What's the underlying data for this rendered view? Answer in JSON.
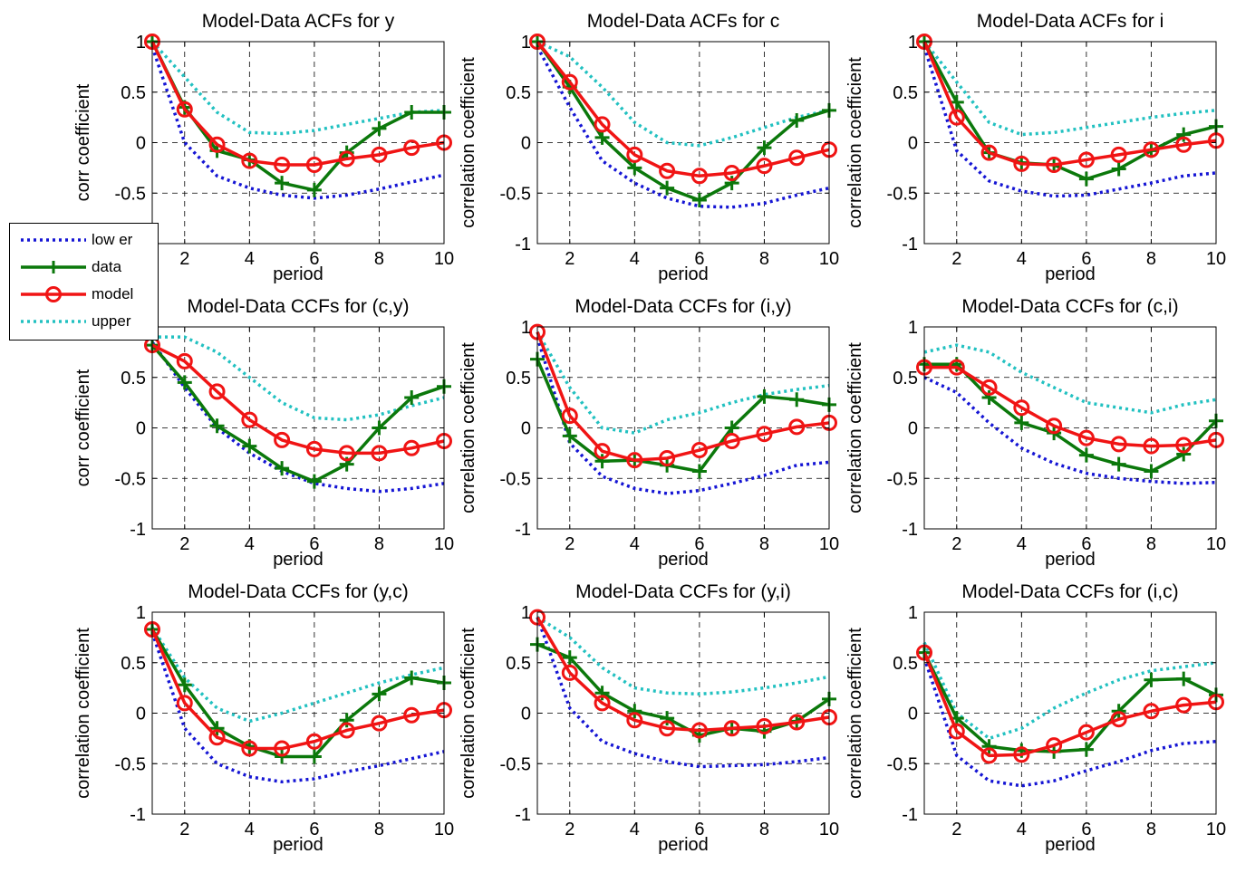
{
  "figure": {
    "xlabel": "period",
    "legend": [
      {
        "name": "low er",
        "key": "lower",
        "color": "#1515d4",
        "style": "dotted"
      },
      {
        "name": "data",
        "key": "data",
        "color": "#0b780b",
        "style": "plus"
      },
      {
        "name": "model",
        "key": "model",
        "color": "#f01414",
        "style": "circle"
      },
      {
        "name": "upper",
        "key": "upper",
        "color": "#22c1c1",
        "style": "dotted"
      }
    ]
  },
  "chart_data": [
    {
      "type": "line",
      "title": "Model-Data ACFs for y",
      "xlabel": "period",
      "ylabel": "corr coefficient",
      "x": [
        1,
        2,
        3,
        4,
        5,
        6,
        7,
        8,
        9,
        10
      ],
      "xlim": [
        1,
        10
      ],
      "ylim": [
        -1,
        1
      ],
      "grid": true,
      "xticks": [
        "2",
        "4",
        "6",
        "8",
        "10"
      ],
      "yticks": [
        "-1",
        "-0.5",
        "0",
        "0.5",
        "1"
      ],
      "series": [
        {
          "name": "low er",
          "values": [
            0.95,
            0.0,
            -0.33,
            -0.45,
            -0.52,
            -0.55,
            -0.52,
            -0.46,
            -0.39,
            -0.32
          ]
        },
        {
          "name": "data",
          "values": [
            1.0,
            0.35,
            -0.08,
            -0.17,
            -0.4,
            -0.47,
            -0.1,
            0.14,
            0.3,
            0.3
          ]
        },
        {
          "name": "model",
          "values": [
            1.0,
            0.33,
            -0.02,
            -0.18,
            -0.22,
            -0.22,
            -0.16,
            -0.12,
            -0.05,
            0.0
          ]
        },
        {
          "name": "upper",
          "values": [
            1.0,
            0.65,
            0.3,
            0.1,
            0.09,
            0.12,
            0.18,
            0.24,
            0.3,
            0.32
          ]
        }
      ]
    },
    {
      "type": "line",
      "title": "Model-Data ACFs for c",
      "xlabel": "period",
      "ylabel": "correlation coefficient",
      "x": [
        1,
        2,
        3,
        4,
        5,
        6,
        7,
        8,
        9,
        10
      ],
      "xlim": [
        1,
        10
      ],
      "ylim": [
        -1,
        1
      ],
      "grid": true,
      "xticks": [
        "2",
        "4",
        "6",
        "8",
        "10"
      ],
      "yticks": [
        "-1",
        "-0.5",
        "0",
        "0.5",
        "1"
      ],
      "series": [
        {
          "name": "low er",
          "values": [
            0.95,
            0.35,
            -0.18,
            -0.4,
            -0.55,
            -0.63,
            -0.64,
            -0.6,
            -0.52,
            -0.45
          ]
        },
        {
          "name": "data",
          "values": [
            1.0,
            0.55,
            0.05,
            -0.25,
            -0.45,
            -0.57,
            -0.4,
            -0.05,
            0.22,
            0.32
          ]
        },
        {
          "name": "model",
          "values": [
            1.0,
            0.6,
            0.18,
            -0.12,
            -0.28,
            -0.33,
            -0.3,
            -0.23,
            -0.15,
            -0.07
          ]
        },
        {
          "name": "upper",
          "values": [
            1.0,
            0.85,
            0.55,
            0.2,
            0.0,
            -0.03,
            0.05,
            0.15,
            0.25,
            0.32
          ]
        }
      ]
    },
    {
      "type": "line",
      "title": "Model-Data ACFs for i",
      "xlabel": "period",
      "ylabel": "correlation coefficient",
      "x": [
        1,
        2,
        3,
        4,
        5,
        6,
        7,
        8,
        9,
        10
      ],
      "xlim": [
        1,
        10
      ],
      "ylim": [
        -1,
        1
      ],
      "grid": true,
      "xticks": [
        "2",
        "4",
        "6",
        "8",
        "10"
      ],
      "yticks": [
        "-1",
        "-0.5",
        "0",
        "0.5",
        "1"
      ],
      "series": [
        {
          "name": "low er",
          "values": [
            0.95,
            -0.08,
            -0.38,
            -0.48,
            -0.53,
            -0.52,
            -0.46,
            -0.4,
            -0.33,
            -0.3
          ]
        },
        {
          "name": "data",
          "values": [
            1.0,
            0.4,
            -0.1,
            -0.2,
            -0.22,
            -0.36,
            -0.26,
            -0.08,
            0.08,
            0.16
          ]
        },
        {
          "name": "model",
          "values": [
            1.0,
            0.25,
            -0.1,
            -0.21,
            -0.22,
            -0.17,
            -0.12,
            -0.07,
            -0.02,
            0.02
          ]
        },
        {
          "name": "upper",
          "values": [
            1.0,
            0.6,
            0.2,
            0.08,
            0.1,
            0.15,
            0.2,
            0.25,
            0.29,
            0.32
          ]
        }
      ]
    },
    {
      "type": "line",
      "title": "Model-Data CCFs for (c,y)",
      "xlabel": "period",
      "ylabel": "corr coefficient",
      "x": [
        1,
        2,
        3,
        4,
        5,
        6,
        7,
        8,
        9,
        10
      ],
      "xlim": [
        1,
        10
      ],
      "ylim": [
        -1,
        1
      ],
      "grid": true,
      "xticks": [
        "2",
        "4",
        "6",
        "8",
        "10"
      ],
      "yticks": [
        "-1",
        "-0.5",
        "0",
        "0.5",
        "1"
      ],
      "series": [
        {
          "name": "low er",
          "values": [
            0.85,
            0.4,
            0.0,
            -0.25,
            -0.43,
            -0.55,
            -0.6,
            -0.63,
            -0.6,
            -0.55
          ]
        },
        {
          "name": "data",
          "values": [
            0.82,
            0.45,
            0.02,
            -0.18,
            -0.4,
            -0.53,
            -0.36,
            0.0,
            0.3,
            0.41
          ]
        },
        {
          "name": "model",
          "values": [
            0.82,
            0.66,
            0.36,
            0.08,
            -0.12,
            -0.21,
            -0.25,
            -0.25,
            -0.2,
            -0.13
          ]
        },
        {
          "name": "upper",
          "values": [
            0.9,
            0.9,
            0.75,
            0.5,
            0.25,
            0.1,
            0.08,
            0.13,
            0.22,
            0.3
          ]
        }
      ]
    },
    {
      "type": "line",
      "title": "Model-Data CCFs for (i,y)",
      "xlabel": "period",
      "ylabel": "correlation coefficient",
      "x": [
        1,
        2,
        3,
        4,
        5,
        6,
        7,
        8,
        9,
        10
      ],
      "xlim": [
        1,
        10
      ],
      "ylim": [
        -1,
        1
      ],
      "grid": true,
      "xticks": [
        "2",
        "4",
        "6",
        "8",
        "10"
      ],
      "yticks": [
        "-1",
        "-0.5",
        "0",
        "0.5",
        "1"
      ],
      "series": [
        {
          "name": "low er",
          "values": [
            0.9,
            -0.15,
            -0.48,
            -0.6,
            -0.65,
            -0.62,
            -0.55,
            -0.47,
            -0.37,
            -0.34
          ]
        },
        {
          "name": "data",
          "values": [
            0.68,
            -0.08,
            -0.33,
            -0.32,
            -0.37,
            -0.43,
            0.0,
            0.31,
            0.28,
            0.23
          ]
        },
        {
          "name": "model",
          "values": [
            0.95,
            0.12,
            -0.23,
            -0.32,
            -0.3,
            -0.22,
            -0.13,
            -0.06,
            0.01,
            0.05
          ]
        },
        {
          "name": "upper",
          "values": [
            0.95,
            0.4,
            0.0,
            -0.05,
            0.08,
            0.15,
            0.25,
            0.33,
            0.38,
            0.42
          ]
        }
      ]
    },
    {
      "type": "line",
      "title": "Model-Data CCFs for (c,i)",
      "xlabel": "period",
      "ylabel": "correlation coefficient",
      "x": [
        1,
        2,
        3,
        4,
        5,
        6,
        7,
        8,
        9,
        10
      ],
      "xlim": [
        1,
        10
      ],
      "ylim": [
        -1,
        1
      ],
      "grid": true,
      "xticks": [
        "2",
        "4",
        "6",
        "8",
        "10"
      ],
      "yticks": [
        "-1",
        "-0.5",
        "0",
        "0.5",
        "1"
      ],
      "series": [
        {
          "name": "low er",
          "values": [
            0.5,
            0.35,
            0.05,
            -0.2,
            -0.35,
            -0.45,
            -0.5,
            -0.53,
            -0.55,
            -0.54
          ]
        },
        {
          "name": "data",
          "values": [
            0.63,
            0.63,
            0.3,
            0.05,
            -0.05,
            -0.27,
            -0.36,
            -0.43,
            -0.26,
            0.07
          ]
        },
        {
          "name": "model",
          "values": [
            0.6,
            0.6,
            0.4,
            0.2,
            0.02,
            -0.1,
            -0.16,
            -0.18,
            -0.17,
            -0.12
          ]
        },
        {
          "name": "upper",
          "values": [
            0.75,
            0.82,
            0.75,
            0.55,
            0.4,
            0.25,
            0.2,
            0.15,
            0.23,
            0.28
          ]
        }
      ]
    },
    {
      "type": "line",
      "title": "Model-Data CCFs for (y,c)",
      "xlabel": "period",
      "ylabel": "correlation coefficient",
      "x": [
        1,
        2,
        3,
        4,
        5,
        6,
        7,
        8,
        9,
        10
      ],
      "xlim": [
        1,
        10
      ],
      "ylim": [
        -1,
        1
      ],
      "grid": true,
      "xticks": [
        "2",
        "4",
        "6",
        "8",
        "10"
      ],
      "yticks": [
        "-1",
        "-0.5",
        "0",
        "0.5",
        "1"
      ],
      "series": [
        {
          "name": "low er",
          "values": [
            0.8,
            -0.15,
            -0.5,
            -0.63,
            -0.68,
            -0.65,
            -0.58,
            -0.52,
            -0.45,
            -0.38
          ]
        },
        {
          "name": "data",
          "values": [
            0.83,
            0.28,
            -0.15,
            -0.33,
            -0.43,
            -0.43,
            -0.07,
            0.19,
            0.35,
            0.3
          ]
        },
        {
          "name": "model",
          "values": [
            0.83,
            0.1,
            -0.24,
            -0.35,
            -0.35,
            -0.28,
            -0.17,
            -0.1,
            -0.02,
            0.03
          ]
        },
        {
          "name": "upper",
          "values": [
            0.85,
            0.35,
            0.05,
            -0.08,
            0.0,
            0.1,
            0.2,
            0.3,
            0.38,
            0.45
          ]
        }
      ]
    },
    {
      "type": "line",
      "title": "Model-Data CCFs for (y,i)",
      "xlabel": "period",
      "ylabel": "correlation coefficient",
      "x": [
        1,
        2,
        3,
        4,
        5,
        6,
        7,
        8,
        9,
        10
      ],
      "xlim": [
        1,
        10
      ],
      "ylim": [
        -1,
        1
      ],
      "grid": true,
      "xticks": [
        "2",
        "4",
        "6",
        "8",
        "10"
      ],
      "yticks": [
        "-1",
        "-0.5",
        "0",
        "0.5",
        "1"
      ],
      "series": [
        {
          "name": "low er",
          "values": [
            0.95,
            0.05,
            -0.28,
            -0.4,
            -0.48,
            -0.53,
            -0.52,
            -0.51,
            -0.48,
            -0.44
          ]
        },
        {
          "name": "data",
          "values": [
            0.68,
            0.55,
            0.2,
            0.02,
            -0.05,
            -0.22,
            -0.15,
            -0.18,
            -0.08,
            0.14
          ]
        },
        {
          "name": "model",
          "values": [
            0.95,
            0.4,
            0.1,
            -0.07,
            -0.15,
            -0.17,
            -0.15,
            -0.13,
            -0.09,
            -0.04
          ]
        },
        {
          "name": "upper",
          "values": [
            0.95,
            0.75,
            0.45,
            0.25,
            0.2,
            0.19,
            0.21,
            0.25,
            0.3,
            0.36
          ]
        }
      ]
    },
    {
      "type": "line",
      "title": "Model-Data CCFs for (i,c)",
      "xlabel": "period",
      "ylabel": "correlation coefficient",
      "x": [
        1,
        2,
        3,
        4,
        5,
        6,
        7,
        8,
        9,
        10
      ],
      "xlim": [
        1,
        10
      ],
      "ylim": [
        -1,
        1
      ],
      "grid": true,
      "xticks": [
        "2",
        "4",
        "6",
        "8",
        "10"
      ],
      "yticks": [
        "-1",
        "-0.5",
        "0",
        "0.5",
        "1"
      ],
      "series": [
        {
          "name": "low er",
          "values": [
            0.55,
            -0.42,
            -0.67,
            -0.72,
            -0.67,
            -0.57,
            -0.48,
            -0.37,
            -0.3,
            -0.28
          ]
        },
        {
          "name": "data",
          "values": [
            0.6,
            -0.05,
            -0.33,
            -0.37,
            -0.38,
            -0.36,
            0.02,
            0.33,
            0.34,
            0.18
          ]
        },
        {
          "name": "model",
          "values": [
            0.6,
            -0.18,
            -0.42,
            -0.41,
            -0.32,
            -0.19,
            -0.06,
            0.02,
            0.08,
            0.11
          ]
        },
        {
          "name": "upper",
          "values": [
            0.7,
            0.0,
            -0.25,
            -0.15,
            0.05,
            0.2,
            0.33,
            0.42,
            0.46,
            0.5
          ]
        }
      ]
    }
  ]
}
